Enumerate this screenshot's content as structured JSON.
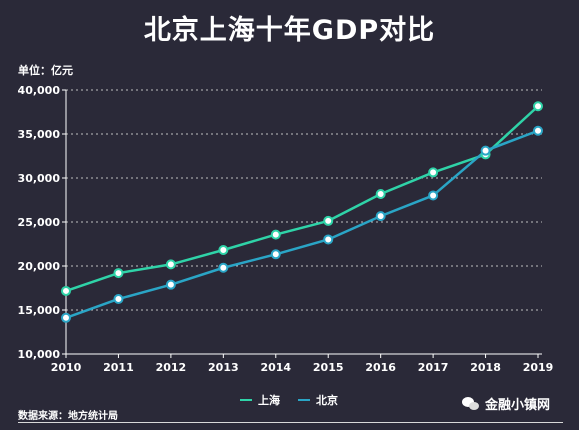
{
  "chart_data": {
    "type": "line",
    "title": "北京上海十年GDP对比",
    "unit_label": "单位：亿元",
    "x": [
      "2010",
      "2011",
      "2012",
      "2013",
      "2014",
      "2015",
      "2016",
      "2017",
      "2018",
      "2019"
    ],
    "yticks": [
      "10,000",
      "15,000",
      "20,000",
      "25,000",
      "30,000",
      "35,000",
      "40,000"
    ],
    "ylim": [
      10000,
      40000
    ],
    "grid": true,
    "legend_position": "bottom",
    "series": [
      {
        "name": "上海",
        "color": "#2fd3a8",
        "values": [
          17166,
          19196,
          20182,
          21818,
          23568,
          25123,
          28179,
          30633,
          32680,
          38155
        ]
      },
      {
        "name": "北京",
        "color": "#2aa5c6",
        "values": [
          14114,
          16252,
          17879,
          19801,
          21331,
          23015,
          25669,
          28015,
          33106,
          35371
        ]
      }
    ],
    "source": "数据来源：地方统计局"
  },
  "watermark": "金融小镇网",
  "icons": {
    "watermark_icon": "wechat-icon"
  }
}
